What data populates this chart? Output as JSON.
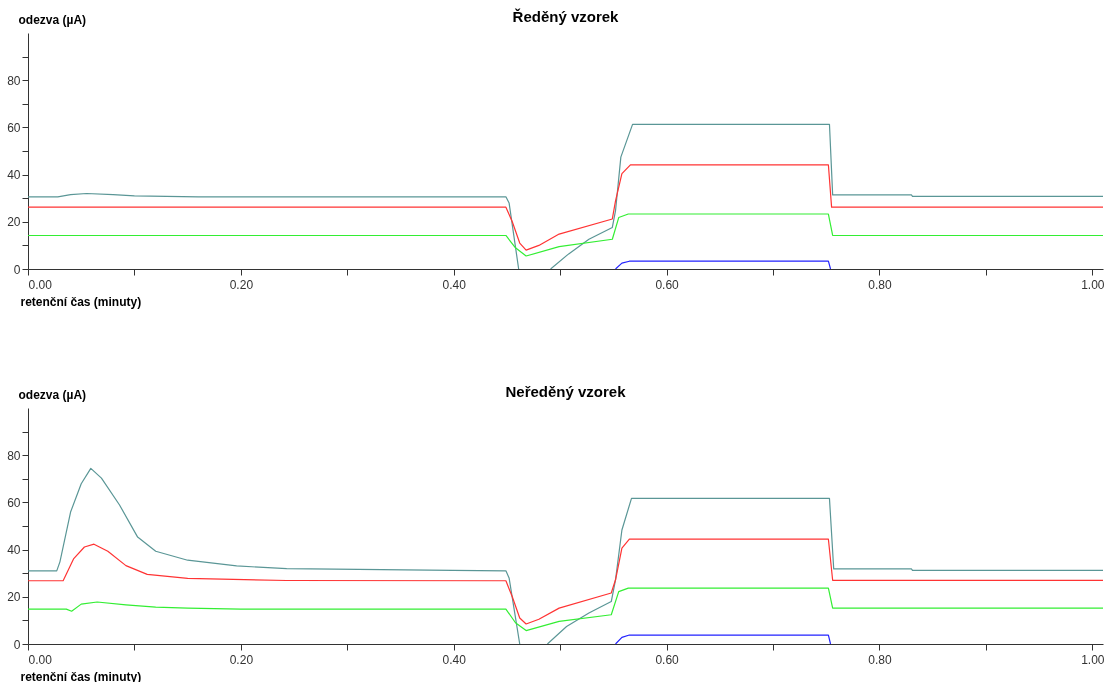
{
  "chart_data": [
    {
      "type": "line",
      "title": "Ředěný vzorek",
      "xlabel": "retenční čas (minuty)",
      "ylabel": "odezva (µA)",
      "xlim": [
        0,
        1.01
      ],
      "ylim": [
        0,
        100
      ],
      "xticks": [
        {
          "value": 0,
          "label": "0.00"
        },
        {
          "value": 0.1,
          "label": null
        },
        {
          "value": 0.2,
          "label": "0.20"
        },
        {
          "value": 0.3,
          "label": null
        },
        {
          "value": 0.4,
          "label": "0.40"
        },
        {
          "value": 0.5,
          "label": null
        },
        {
          "value": 0.6,
          "label": "0.60"
        },
        {
          "value": 0.7,
          "label": null
        },
        {
          "value": 0.8,
          "label": "0.80"
        },
        {
          "value": 0.9,
          "label": null
        },
        {
          "value": 1,
          "label": "1.00"
        }
      ],
      "yticks": [
        0,
        {
          "value": 10,
          "label": null
        },
        20,
        {
          "value": 30,
          "label": null
        },
        40,
        {
          "value": 50,
          "label": null
        },
        60,
        {
          "value": 70,
          "label": null
        },
        80,
        {
          "value": 90,
          "label": null
        }
      ],
      "series": [
        {
          "color": "#5a9696",
          "x": [
            0,
            0.028,
            0.04,
            0.055,
            0.08,
            0.1,
            0.16,
            0.449,
            0.452,
            0.461,
            0.476,
            0.491,
            0.508,
            0.527,
            0.549,
            0.552,
            0.557,
            0.568,
            0.753,
            0.756,
            0.83,
            0.831,
            1.01
          ],
          "values": [
            30.6,
            30.6,
            31.5,
            32,
            31.5,
            31,
            30.6,
            30.6,
            28,
            0,
            null,
            0,
            6.4,
            12.6,
            17.6,
            24.7,
            47.4,
            61.3,
            61.3,
            31.4,
            31.4,
            30.8,
            30.8
          ]
        },
        {
          "color": "#ff3333",
          "x": [
            0,
            0.449,
            0.455,
            0.462,
            0.468,
            0.48,
            0.499,
            0.549,
            0.552,
            0.558,
            0.566,
            0.752,
            0.755,
            1.01
          ],
          "values": [
            26.2,
            26.2,
            20,
            11,
            8,
            10,
            14.8,
            21.2,
            28.9,
            40.4,
            44.1,
            44.1,
            26.2,
            26.2
          ]
        },
        {
          "color": "#33ee33",
          "x": [
            0,
            0.449,
            0.458,
            0.468,
            0.499,
            0.549,
            0.555,
            0.564,
            0.752,
            0.756,
            1.01
          ],
          "values": [
            14.2,
            14.2,
            9,
            5.5,
            9.5,
            12.6,
            21.8,
            23.3,
            23.3,
            14.2,
            14.2
          ]
        },
        {
          "color": "#2222ff",
          "x": [
            0.552,
            0.558,
            0.565,
            0.752,
            0.754
          ],
          "values": [
            0,
            2.5,
            3.3,
            3.3,
            0
          ]
        }
      ]
    },
    {
      "type": "line",
      "title": "Neředěný vzorek",
      "xlabel": "retenční čas (minuty)",
      "ylabel": "odezva (µA)",
      "xlim": [
        0,
        1.01
      ],
      "ylim": [
        0,
        100
      ],
      "xticks": [
        {
          "value": 0,
          "label": "0.00"
        },
        {
          "value": 0.1,
          "label": null
        },
        {
          "value": 0.2,
          "label": "0.20"
        },
        {
          "value": 0.3,
          "label": null
        },
        {
          "value": 0.4,
          "label": "0.40"
        },
        {
          "value": 0.5,
          "label": null
        },
        {
          "value": 0.6,
          "label": "0.60"
        },
        {
          "value": 0.7,
          "label": null
        },
        {
          "value": 0.8,
          "label": "0.80"
        },
        {
          "value": 0.9,
          "label": null
        },
        {
          "value": 1,
          "label": "1.00"
        }
      ],
      "yticks": [
        0,
        {
          "value": 10,
          "label": null
        },
        20,
        {
          "value": 30,
          "label": null
        },
        40,
        {
          "value": 50,
          "label": null
        },
        60,
        {
          "value": 70,
          "label": null
        },
        80,
        {
          "value": 90,
          "label": null
        }
      ],
      "series": [
        {
          "color": "#5a9696",
          "x": [
            0,
            0.027,
            0.03,
            0.04,
            0.05,
            0.059,
            0.069,
            0.086,
            0.103,
            0.12,
            0.15,
            0.196,
            0.243,
            0.31,
            0.399,
            0.449,
            0.452,
            0.462,
            0.475,
            0.488,
            0.506,
            0.527,
            0.548,
            0.552,
            0.558,
            0.567,
            0.753,
            0.757,
            0.83,
            0.831,
            1.01
          ],
          "values": [
            31,
            31,
            34.8,
            55.9,
            67.9,
            74.4,
            70.3,
            58.9,
            45.3,
            39.3,
            35.5,
            33.1,
            31.9,
            31.6,
            31.2,
            31,
            28,
            0,
            null,
            0,
            7.4,
            13.1,
            18,
            27.2,
            48.3,
            61.7,
            61.7,
            31.8,
            31.8,
            31.2,
            31.2
          ]
        },
        {
          "color": "#ff3333",
          "x": [
            0,
            0.033,
            0.043,
            0.053,
            0.062,
            0.075,
            0.092,
            0.112,
            0.15,
            0.243,
            0.449,
            0.455,
            0.462,
            0.468,
            0.48,
            0.499,
            0.548,
            0.552,
            0.558,
            0.565,
            0.752,
            0.756,
            1.01
          ],
          "values": [
            26.8,
            26.8,
            36.2,
            41.1,
            42.3,
            39.3,
            33.2,
            29.5,
            27.8,
            26.9,
            26.8,
            20,
            11,
            8.5,
            10.5,
            15.2,
            21.6,
            27.2,
            40.6,
            44.4,
            44.4,
            27,
            27
          ]
        },
        {
          "color": "#33ee33",
          "x": [
            0,
            0.036,
            0.041,
            0.05,
            0.065,
            0.092,
            0.12,
            0.15,
            0.2,
            0.449,
            0.458,
            0.468,
            0.499,
            0.548,
            0.555,
            0.564,
            0.752,
            0.756,
            1.01
          ],
          "values": [
            14.8,
            14.8,
            13.9,
            16.9,
            17.8,
            16.6,
            15.6,
            15.2,
            14.8,
            14.8,
            9,
            5.7,
            9.6,
            12.4,
            22.2,
            23.7,
            23.7,
            15.2,
            15.2
          ]
        },
        {
          "color": "#2222ff",
          "x": [
            0.552,
            0.558,
            0.565,
            0.752,
            0.754
          ],
          "values": [
            0,
            2.8,
            3.8,
            3.8,
            0
          ]
        }
      ]
    }
  ]
}
